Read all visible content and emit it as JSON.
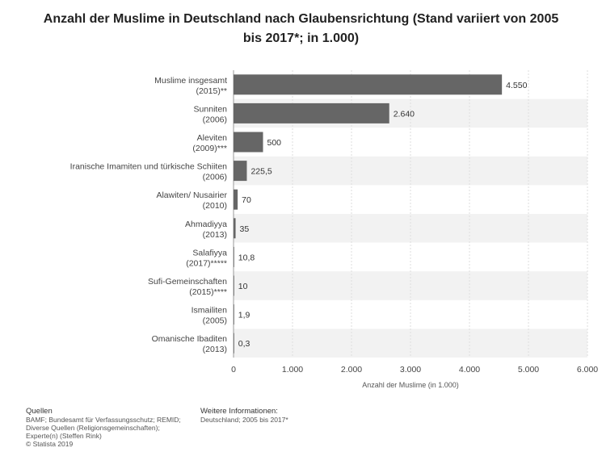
{
  "chart_data": {
    "type": "bar",
    "orientation": "horizontal",
    "title": "Anzahl der Muslime in Deutschland nach Glaubensrichtung (Stand variiert von 2005 bis 2017*; in 1.000)",
    "xlabel": "Anzahl der Muslime (in 1.000)",
    "ylabel": "",
    "xlim": [
      0,
      6000
    ],
    "ticks": [
      0,
      1000,
      2000,
      3000,
      4000,
      5000,
      6000
    ],
    "tick_labels": [
      "0",
      "1.000",
      "2.000",
      "3.000",
      "4.000",
      "5.000",
      "6.000"
    ],
    "categories": [
      [
        "Muslime insgesamt",
        "(2015)**"
      ],
      [
        "Sunniten",
        "(2006)"
      ],
      [
        "Aleviten",
        "(2009)***"
      ],
      [
        "Iranische Imamiten und türkische Schiiten",
        "(2006)"
      ],
      [
        "Alawiten/ Nusairier",
        "(2010)"
      ],
      [
        "Ahmadiyya",
        "(2013)"
      ],
      [
        "Salafiyya",
        "(2017)*****"
      ],
      [
        "Sufi-Gemeinschaften",
        "(2015)****"
      ],
      [
        "Ismailiten",
        "(2005)"
      ],
      [
        "Omanische Ibaditen",
        "(2013)"
      ]
    ],
    "values": [
      4550,
      2640,
      500,
      225.5,
      70,
      35,
      10.8,
      10,
      1.9,
      0.3
    ],
    "value_labels": [
      "4.550",
      "2.640",
      "500",
      "225,5",
      "70",
      "35",
      "10,8",
      "10",
      "1,9",
      "0,3"
    ],
    "grid": true,
    "bar_color": "#666666"
  },
  "footer": {
    "sources_heading": "Quellen",
    "sources_lines": [
      "BAMF; Bundesamt für Verfassungsschutz; REMID;",
      "Diverse Quellen (Religionsgemeinschaften);",
      "Experte(n) (Steffen Rink)",
      "© Statista 2019"
    ],
    "info_heading": "Weitere Informationen:",
    "info_lines": [
      "Deutschland; 2005 bis 2017*"
    ]
  }
}
